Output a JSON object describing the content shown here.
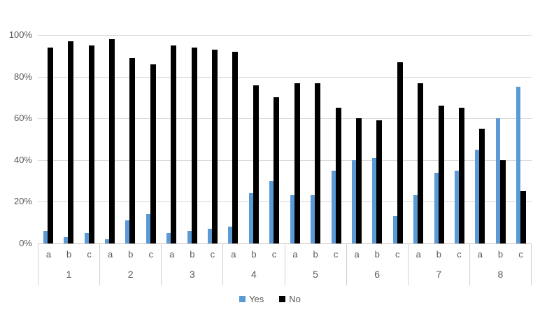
{
  "chart_data": {
    "type": "bar",
    "title": "",
    "groups": [
      "1",
      "2",
      "3",
      "4",
      "5",
      "6",
      "7",
      "8"
    ],
    "subcategories": [
      "a",
      "b",
      "c"
    ],
    "series": [
      {
        "name": "Yes",
        "color": "#5B9BD5",
        "values": [
          [
            6,
            3,
            5
          ],
          [
            2,
            11,
            14
          ],
          [
            5,
            6,
            7
          ],
          [
            8,
            24,
            30
          ],
          [
            23,
            23,
            35
          ],
          [
            40,
            41,
            13
          ],
          [
            23,
            34,
            35
          ],
          [
            45,
            60,
            75
          ]
        ]
      },
      {
        "name": "No",
        "color": "#000000",
        "values": [
          [
            94,
            97,
            95
          ],
          [
            98,
            89,
            86
          ],
          [
            95,
            94,
            93
          ],
          [
            92,
            76,
            70
          ],
          [
            77,
            77,
            65
          ],
          [
            60,
            59,
            87
          ],
          [
            77,
            66,
            65
          ],
          [
            55,
            40,
            25
          ]
        ]
      }
    ],
    "y_ticks": [
      "100%",
      "80%",
      "60%",
      "40%",
      "20%",
      "0%"
    ],
    "ylim": [
      0,
      100
    ],
    "grid": "horizontal",
    "gridline_color": "#D9D9D9",
    "axis_label_color": "#595959",
    "legend_position": "bottom",
    "y_axis_title_fragment": ")"
  }
}
